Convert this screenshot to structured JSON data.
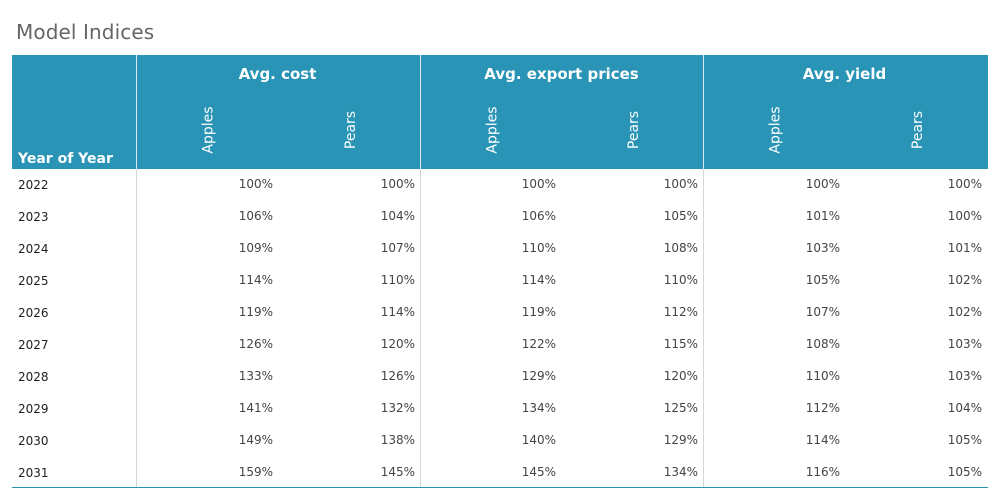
{
  "title": "Model Indices",
  "header": {
    "row_label": "Year of Year",
    "groups": [
      {
        "label": "Avg. cost",
        "sub": [
          "Apples",
          "Pears"
        ]
      },
      {
        "label": "Avg. export prices",
        "sub": [
          "Apples",
          "Pears"
        ]
      },
      {
        "label": "Avg. yield",
        "sub": [
          "Apples",
          "Pears"
        ]
      }
    ]
  },
  "colors": {
    "header_bg": "#2a94b6",
    "header_text": "#ffffff"
  },
  "chart_data": {
    "type": "table",
    "title": "Model Indices",
    "columns": [
      "Year of Year",
      "Avg. cost Apples",
      "Avg. cost Pears",
      "Avg. export prices Apples",
      "Avg. export prices Pears",
      "Avg. yield Apples",
      "Avg. yield Pears"
    ],
    "rows": [
      {
        "year": "2022",
        "values": [
          "100%",
          "100%",
          "100%",
          "100%",
          "100%",
          "100%"
        ]
      },
      {
        "year": "2023",
        "values": [
          "106%",
          "104%",
          "106%",
          "105%",
          "101%",
          "100%"
        ]
      },
      {
        "year": "2024",
        "values": [
          "109%",
          "107%",
          "110%",
          "108%",
          "103%",
          "101%"
        ]
      },
      {
        "year": "2025",
        "values": [
          "114%",
          "110%",
          "114%",
          "110%",
          "105%",
          "102%"
        ]
      },
      {
        "year": "2026",
        "values": [
          "119%",
          "114%",
          "119%",
          "112%",
          "107%",
          "102%"
        ]
      },
      {
        "year": "2027",
        "values": [
          "126%",
          "120%",
          "122%",
          "115%",
          "108%",
          "103%"
        ]
      },
      {
        "year": "2028",
        "values": [
          "133%",
          "126%",
          "129%",
          "120%",
          "110%",
          "103%"
        ]
      },
      {
        "year": "2029",
        "values": [
          "141%",
          "132%",
          "134%",
          "125%",
          "112%",
          "104%"
        ]
      },
      {
        "year": "2030",
        "values": [
          "149%",
          "138%",
          "140%",
          "129%",
          "114%",
          "105%"
        ]
      },
      {
        "year": "2031",
        "values": [
          "159%",
          "145%",
          "145%",
          "134%",
          "116%",
          "105%"
        ]
      }
    ]
  }
}
